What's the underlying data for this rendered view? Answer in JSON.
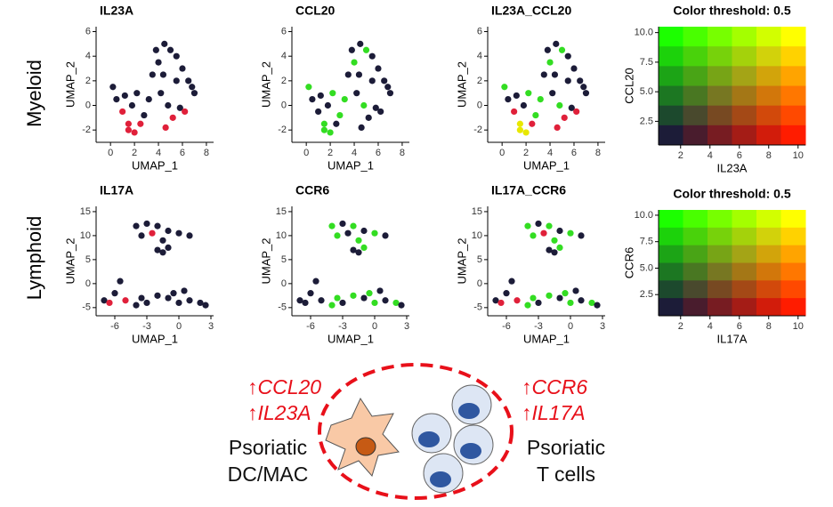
{
  "row_labels": [
    "Myeloid",
    "Lymphoid"
  ],
  "diagram": {
    "left_genes": [
      "↑CCL20",
      "↑IL23A"
    ],
    "left_label": [
      "Psoriatic",
      "DC/MAC"
    ],
    "right_genes": [
      "↑CCR6",
      "↑IL17A"
    ],
    "right_label": [
      "Psoriatic",
      "T cells"
    ]
  },
  "chart_data": [
    {
      "type": "scatter",
      "title": "IL23A",
      "xlabel": "UMAP_1",
      "ylabel": "UMAP_2",
      "x": [
        0.2,
        0.5,
        1.0,
        1.5,
        2.0,
        2.5,
        1.2,
        1.8,
        2.8,
        3.2,
        3.5,
        4.0,
        4.5,
        5.0,
        5.5,
        6.0,
        6.5,
        7.0,
        4.2,
        4.8,
        5.2,
        5.8,
        6.2,
        3.8,
        4.4,
        5.5,
        6.8,
        1.5,
        2.2,
        4.6
      ],
      "y": [
        1.5,
        0.5,
        -0.5,
        -2.0,
        -2.2,
        -1.5,
        0.8,
        0.0,
        -0.8,
        0.5,
        2.5,
        3.5,
        5.0,
        4.5,
        4.0,
        3.0,
        2.0,
        1.0,
        1.0,
        0.0,
        -1.0,
        -0.2,
        -0.5,
        4.5,
        2.5,
        2.0,
        1.5,
        -1.5,
        1.0,
        -1.8
      ],
      "colors": [
        "#1c1c38",
        "#1c1c38",
        "#e0203a",
        "#e0203a",
        "#e0203a",
        "#e0203a",
        "#1c1c38",
        "#1c1c38",
        "#1c1c38",
        "#1c1c38",
        "#1c1c38",
        "#1c1c38",
        "#1c1c38",
        "#1c1c38",
        "#1c1c38",
        "#1c1c38",
        "#1c1c38",
        "#1c1c38",
        "#1c1c38",
        "#1c1c38",
        "#e0203a",
        "#1c1c38",
        "#e0203a",
        "#1c1c38",
        "#1c1c38",
        "#1c1c38",
        "#1c1c38",
        "#e0203a",
        "#1c1c38",
        "#e0203a"
      ],
      "xlim": [
        -1.2,
        8.6
      ],
      "ylim": [
        -3.0,
        6.4
      ],
      "xticks": [
        0,
        2,
        4,
        6,
        8
      ],
      "yticks": [
        -2,
        0,
        2,
        4,
        6
      ]
    },
    {
      "type": "scatter",
      "title": "CCL20",
      "xlabel": "UMAP_1",
      "ylabel": "UMAP_2",
      "x": [
        0.2,
        0.5,
        1.0,
        1.5,
        2.0,
        2.5,
        1.2,
        1.8,
        2.8,
        3.2,
        3.5,
        4.0,
        4.5,
        5.0,
        5.5,
        6.0,
        6.5,
        7.0,
        4.2,
        4.8,
        5.2,
        5.8,
        6.2,
        3.8,
        4.4,
        5.5,
        6.8,
        1.5,
        2.2,
        4.6
      ],
      "y": [
        1.5,
        0.5,
        -0.5,
        -2.0,
        -2.2,
        -1.5,
        0.8,
        0.0,
        -0.8,
        0.5,
        2.5,
        3.5,
        5.0,
        4.5,
        4.0,
        3.0,
        2.0,
        1.0,
        1.0,
        0.0,
        -1.0,
        -0.2,
        -0.5,
        4.5,
        2.5,
        2.0,
        1.5,
        -1.5,
        1.0,
        -1.8
      ],
      "colors": [
        "#33dd22",
        "#1c1c38",
        "#1c1c38",
        "#33dd22",
        "#33dd22",
        "#1c1c38",
        "#1c1c38",
        "#1c1c38",
        "#33dd22",
        "#33dd22",
        "#1c1c38",
        "#33dd22",
        "#1c1c38",
        "#33dd22",
        "#1c1c38",
        "#1c1c38",
        "#1c1c38",
        "#1c1c38",
        "#1c1c38",
        "#33dd22",
        "#1c1c38",
        "#1c1c38",
        "#1c1c38",
        "#1c1c38",
        "#1c1c38",
        "#1c1c38",
        "#1c1c38",
        "#33dd22",
        "#33dd22",
        "#1c1c38"
      ],
      "xlim": [
        -1.2,
        8.6
      ],
      "ylim": [
        -3.0,
        6.4
      ],
      "xticks": [
        0,
        2,
        4,
        6,
        8
      ],
      "yticks": [
        -2,
        0,
        2,
        4,
        6
      ]
    },
    {
      "type": "scatter",
      "title": "IL23A_CCL20",
      "xlabel": "UMAP_1",
      "ylabel": "UMAP_2",
      "x": [
        0.2,
        0.5,
        1.0,
        1.5,
        2.0,
        2.5,
        1.2,
        1.8,
        2.8,
        3.2,
        3.5,
        4.0,
        4.5,
        5.0,
        5.5,
        6.0,
        6.5,
        7.0,
        4.2,
        4.8,
        5.2,
        5.8,
        6.2,
        3.8,
        4.4,
        5.5,
        6.8,
        1.5,
        2.2,
        4.6
      ],
      "y": [
        1.5,
        0.5,
        -0.5,
        -2.0,
        -2.2,
        -1.5,
        0.8,
        0.0,
        -0.8,
        0.5,
        2.5,
        3.5,
        5.0,
        4.5,
        4.0,
        3.0,
        2.0,
        1.0,
        1.0,
        0.0,
        -1.0,
        -0.2,
        -0.5,
        4.5,
        2.5,
        2.0,
        1.5,
        -1.5,
        1.0,
        -1.8
      ],
      "colors": [
        "#33dd22",
        "#1c1c38",
        "#e0203a",
        "#e8e800",
        "#e8e800",
        "#e0203a",
        "#1c1c38",
        "#1c1c38",
        "#33dd22",
        "#33dd22",
        "#1c1c38",
        "#33dd22",
        "#1c1c38",
        "#33dd22",
        "#1c1c38",
        "#1c1c38",
        "#1c1c38",
        "#1c1c38",
        "#1c1c38",
        "#33dd22",
        "#e0203a",
        "#1c1c38",
        "#e0203a",
        "#1c1c38",
        "#1c1c38",
        "#1c1c38",
        "#1c1c38",
        "#e8e800",
        "#33dd22",
        "#e0203a"
      ],
      "xlim": [
        -1.2,
        8.6
      ],
      "ylim": [
        -3.0,
        6.4
      ],
      "xticks": [
        0,
        2,
        4,
        6,
        8
      ],
      "yticks": [
        -2,
        0,
        2,
        4,
        6
      ]
    },
    {
      "type": "heatmap",
      "title": "Color threshold: 0.5",
      "xlabel": "IL23A",
      "ylabel": "CCL20",
      "xlim": [
        0.5,
        10.5
      ],
      "ylim": [
        0.5,
        10.5
      ],
      "xticks": [
        2,
        4,
        6,
        8,
        10
      ],
      "yticks": [
        2.5,
        {
          "value": 5,
          "label": "5.0"
        },
        7.5,
        {
          "value": 10,
          "label": "10.0"
        }
      ],
      "colors": [
        [
          "#1cff00",
          "#49ff00",
          "#77ff00",
          "#a4ff00",
          "#d2ff00",
          "#ffff00"
        ],
        [
          "#1cd20b",
          "#49d20b",
          "#77d20b",
          "#a4d20b",
          "#d2d20b",
          "#ffd200"
        ],
        [
          "#1ca416",
          "#49a416",
          "#77a416",
          "#a4a416",
          "#d2a40b",
          "#ffa400"
        ],
        [
          "#1c7722",
          "#497722",
          "#777722",
          "#a47716",
          "#d2770b",
          "#ff7700"
        ],
        [
          "#1c492d",
          "#49492d",
          "#774922",
          "#a44916",
          "#d2490b",
          "#ff4900"
        ],
        [
          "#1c1c38",
          "#491c2d",
          "#771c22",
          "#a41c16",
          "#d21c0b",
          "#ff1c00"
        ]
      ]
    },
    {
      "type": "scatter",
      "title": "IL17A",
      "xlabel": "UMAP_1",
      "ylabel": "UMAP_2",
      "x": [
        -4,
        -3,
        -2,
        -1,
        0,
        1,
        -3.5,
        -2.5,
        -1.5,
        -2,
        -1,
        -1.5,
        -7,
        -6.5,
        -6,
        -5,
        -4,
        -3,
        -2,
        -1,
        0,
        1,
        2,
        2.5,
        -0.5,
        0.5,
        -5.5,
        -3.5
      ],
      "y": [
        12,
        12.5,
        12,
        11,
        10.5,
        10,
        10,
        10.5,
        9,
        7,
        7.5,
        6.5,
        -3.5,
        -4,
        -2,
        -3.5,
        -4.5,
        -4,
        -2.5,
        -3,
        -4,
        -3.5,
        -4,
        -4.5,
        -2,
        -1.5,
        0.5,
        -3
      ],
      "colors": [
        "#1c1c38",
        "#1c1c38",
        "#1c1c38",
        "#1c1c38",
        "#1c1c38",
        "#1c1c38",
        "#1c1c38",
        "#e0203a",
        "#1c1c38",
        "#1c1c38",
        "#1c1c38",
        "#1c1c38",
        "#1c1c38",
        "#e0203a",
        "#1c1c38",
        "#e0203a",
        "#1c1c38",
        "#1c1c38",
        "#1c1c38",
        "#1c1c38",
        "#1c1c38",
        "#1c1c38",
        "#1c1c38",
        "#1c1c38",
        "#1c1c38",
        "#1c1c38",
        "#1c1c38",
        "#1c1c38"
      ],
      "xlim": [
        -7.75,
        3.25
      ],
      "ylim": [
        -6.7,
        16.1
      ],
      "xticks": [
        -6,
        -3,
        0,
        3
      ],
      "yticks": [
        -5,
        0,
        5,
        10,
        15
      ]
    },
    {
      "type": "scatter",
      "title": "CCR6",
      "xlabel": "UMAP_1",
      "ylabel": "UMAP_2",
      "x": [
        -4,
        -3,
        -2,
        -1,
        0,
        1,
        -3.5,
        -2.5,
        -1.5,
        -2,
        -1,
        -1.5,
        -7,
        -6.5,
        -6,
        -5,
        -4,
        -3,
        -2,
        -1,
        0,
        1,
        2,
        2.5,
        -0.5,
        0.5,
        -5.5,
        -3.5
      ],
      "y": [
        12,
        12.5,
        12,
        11,
        10.5,
        10,
        10,
        10.5,
        9,
        7,
        7.5,
        6.5,
        -3.5,
        -4,
        -2,
        -3.5,
        -4.5,
        -4,
        -2.5,
        -3,
        -4,
        -3.5,
        -4,
        -4.5,
        -2,
        -1.5,
        0.5,
        -3
      ],
      "colors": [
        "#33dd22",
        "#1c1c38",
        "#33dd22",
        "#1c1c38",
        "#33dd22",
        "#1c1c38",
        "#33dd22",
        "#1c1c38",
        "#33dd22",
        "#1c1c38",
        "#33dd22",
        "#1c1c38",
        "#1c1c38",
        "#1c1c38",
        "#1c1c38",
        "#1c1c38",
        "#33dd22",
        "#1c1c38",
        "#33dd22",
        "#1c1c38",
        "#33dd22",
        "#1c1c38",
        "#33dd22",
        "#1c1c38",
        "#33dd22",
        "#1c1c38",
        "#1c1c38",
        "#33dd22"
      ],
      "xlim": [
        -7.75,
        3.25
      ],
      "ylim": [
        -6.7,
        16.1
      ],
      "xticks": [
        -6,
        -3,
        0,
        3
      ],
      "yticks": [
        -5,
        0,
        5,
        10,
        15
      ]
    },
    {
      "type": "scatter",
      "title": "IL17A_CCR6",
      "xlabel": "UMAP_1",
      "ylabel": "UMAP_2",
      "x": [
        -4,
        -3,
        -2,
        -1,
        0,
        1,
        -3.5,
        -2.5,
        -1.5,
        -2,
        -1,
        -1.5,
        -7,
        -6.5,
        -6,
        -5,
        -4,
        -3,
        -2,
        -1,
        0,
        1,
        2,
        2.5,
        -0.5,
        0.5,
        -5.5,
        -3.5
      ],
      "y": [
        12,
        12.5,
        12,
        11,
        10.5,
        10,
        10,
        10.5,
        9,
        7,
        7.5,
        6.5,
        -3.5,
        -4,
        -2,
        -3.5,
        -4.5,
        -4,
        -2.5,
        -3,
        -4,
        -3.5,
        -4,
        -4.5,
        -2,
        -1.5,
        0.5,
        -3
      ],
      "colors": [
        "#33dd22",
        "#1c1c38",
        "#33dd22",
        "#1c1c38",
        "#33dd22",
        "#1c1c38",
        "#33dd22",
        "#e0203a",
        "#33dd22",
        "#1c1c38",
        "#33dd22",
        "#1c1c38",
        "#1c1c38",
        "#e0203a",
        "#1c1c38",
        "#e0203a",
        "#33dd22",
        "#1c1c38",
        "#33dd22",
        "#1c1c38",
        "#33dd22",
        "#1c1c38",
        "#33dd22",
        "#1c1c38",
        "#33dd22",
        "#1c1c38",
        "#1c1c38",
        "#33dd22"
      ],
      "xlim": [
        -7.75,
        3.25
      ],
      "ylim": [
        -6.7,
        16.1
      ],
      "xticks": [
        -6,
        -3,
        0,
        3
      ],
      "yticks": [
        -5,
        0,
        5,
        10,
        15
      ]
    },
    {
      "type": "heatmap",
      "title": "Color threshold: 0.5",
      "xlabel": "IL17A",
      "ylabel": "CCR6",
      "xlim": [
        0.5,
        10.5
      ],
      "ylim": [
        0.5,
        10.5
      ],
      "xticks": [
        2,
        4,
        6,
        8,
        10
      ],
      "yticks": [
        2.5,
        {
          "value": 5,
          "label": "5.0"
        },
        7.5,
        {
          "value": 10,
          "label": "10.0"
        }
      ],
      "colors": [
        [
          "#1cff00",
          "#49ff00",
          "#77ff00",
          "#a4ff00",
          "#d2ff00",
          "#ffff00"
        ],
        [
          "#1cd20b",
          "#49d20b",
          "#77d20b",
          "#a4d20b",
          "#d2d20b",
          "#ffd200"
        ],
        [
          "#1ca416",
          "#49a416",
          "#77a416",
          "#a4a416",
          "#d2a40b",
          "#ffa400"
        ],
        [
          "#1c7722",
          "#497722",
          "#777722",
          "#a47716",
          "#d2770b",
          "#ff7700"
        ],
        [
          "#1c492d",
          "#49492d",
          "#774922",
          "#a44916",
          "#d2490b",
          "#ff4900"
        ],
        [
          "#1c1c38",
          "#491c2d",
          "#771c22",
          "#a41c16",
          "#d21c0b",
          "#ff1c00"
        ]
      ]
    }
  ]
}
